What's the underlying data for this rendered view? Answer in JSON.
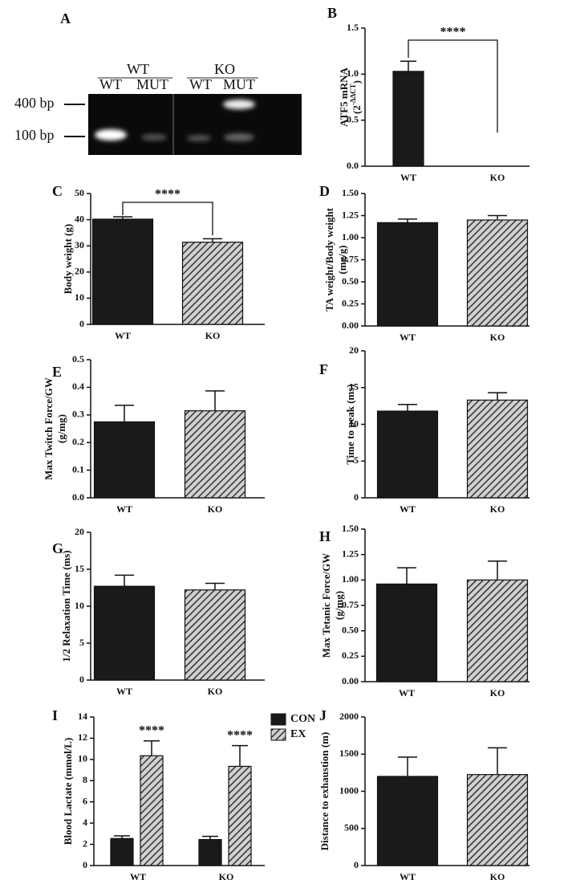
{
  "gel": {
    "panel": "A",
    "groups": [
      "WT",
      "KO"
    ],
    "lanes": [
      "WT",
      "MUT",
      "WT",
      "MUT"
    ],
    "markers": [
      "400 bp",
      "100 bp"
    ]
  },
  "chart_data": [
    {
      "type": "bar",
      "panel": "B",
      "ylabel": [
        "ATF5 mRNA",
        {
          "base": "(2",
          "sup": "-ΔΔCT",
          "end": ")"
        }
      ],
      "categories": [
        "WT",
        "KO"
      ],
      "values": [
        1.03,
        0
      ],
      "errors": [
        0.11,
        0
      ],
      "fills": [
        "solid",
        "hatched"
      ],
      "ylim": [
        0,
        1.5
      ],
      "yticks": [
        {
          "value": 0,
          "label": "0.0"
        },
        {
          "value": 0.5,
          "label": "0.5"
        },
        {
          "value": 1,
          "label": "1.0"
        },
        {
          "value": 1.5,
          "label": "1.5"
        }
      ],
      "significance": "****"
    },
    {
      "type": "bar",
      "panel": "C",
      "ylabel": "Body weight (g)",
      "categories": [
        "WT",
        "KO"
      ],
      "values": [
        40.2,
        31.4
      ],
      "errors": [
        0.9,
        1.3
      ],
      "fills": [
        "solid",
        "hatched"
      ],
      "ylim": [
        0,
        50
      ],
      "yticks": [
        0,
        10,
        20,
        30,
        40,
        50
      ],
      "significance": "****"
    },
    {
      "type": "bar",
      "panel": "D",
      "ylabel": [
        "TA weight/Body weight",
        "(mg/g)"
      ],
      "categories": [
        "WT",
        "KO"
      ],
      "values": [
        1.17,
        1.2
      ],
      "errors": [
        0.04,
        0.05
      ],
      "fills": [
        "solid",
        "hatched"
      ],
      "ylim": [
        0,
        1.5
      ],
      "yticks": [
        {
          "value": 0,
          "label": "0.00"
        },
        {
          "value": 0.25,
          "label": "0.25"
        },
        {
          "value": 0.5,
          "label": "0.50"
        },
        {
          "value": 0.75,
          "label": "0.75"
        },
        {
          "value": 1,
          "label": "1.00"
        },
        {
          "value": 1.25,
          "label": "1.25"
        },
        {
          "value": 1.5,
          "label": "1.50"
        }
      ]
    },
    {
      "type": "bar",
      "panel": "E",
      "ylabel": [
        "Max Twitch Force/GW",
        "(g/mg)"
      ],
      "categories": [
        "WT",
        "KO"
      ],
      "values": [
        0.275,
        0.315
      ],
      "errors": [
        0.06,
        0.072
      ],
      "fills": [
        "solid",
        "hatched"
      ],
      "ylim": [
        0,
        0.5
      ],
      "yticks": [
        {
          "value": 0,
          "label": "0.0"
        },
        {
          "value": 0.1,
          "label": "0.1"
        },
        {
          "value": 0.2,
          "label": "0.2"
        },
        {
          "value": 0.3,
          "label": "0.3"
        },
        {
          "value": 0.4,
          "label": "0.4"
        },
        {
          "value": 0.5,
          "label": "0.5"
        }
      ]
    },
    {
      "type": "bar",
      "panel": "F",
      "ylabel": "Time to peak (ms)",
      "categories": [
        "WT",
        "KO"
      ],
      "values": [
        11.8,
        13.3
      ],
      "errors": [
        0.9,
        1.0
      ],
      "fills": [
        "solid",
        "hatched"
      ],
      "ylim": [
        0,
        20
      ],
      "yticks": [
        0,
        5,
        10,
        15,
        20
      ]
    },
    {
      "type": "bar",
      "panel": "G",
      "ylabel": "1/2 Relaxation Time (ms)",
      "categories": [
        "WT",
        "KO"
      ],
      "values": [
        12.7,
        12.2
      ],
      "errors": [
        1.5,
        0.9
      ],
      "fills": [
        "solid",
        "hatched"
      ],
      "ylim": [
        0,
        20
      ],
      "yticks": [
        0,
        5,
        10,
        15,
        20
      ]
    },
    {
      "type": "bar",
      "panel": "H",
      "ylabel": [
        "Max Tetanic Force/GW",
        "(g/mg)"
      ],
      "categories": [
        "WT",
        "KO"
      ],
      "values": [
        0.96,
        1.0
      ],
      "errors": [
        0.16,
        0.185
      ],
      "fills": [
        "solid",
        "hatched"
      ],
      "ylim": [
        0,
        1.5
      ],
      "yticks": [
        {
          "value": 0,
          "label": "0.00"
        },
        {
          "value": 0.25,
          "label": "0.25"
        },
        {
          "value": 0.5,
          "label": "0.50"
        },
        {
          "value": 0.75,
          "label": "0.75"
        },
        {
          "value": 1,
          "label": "1.00"
        },
        {
          "value": 1.25,
          "label": "1.25"
        },
        {
          "value": 1.5,
          "label": "1.50"
        }
      ]
    },
    {
      "type": "grouped-bar",
      "panel": "I",
      "ylabel": "Blood Lactate (mmol/L)",
      "categories": [
        "WT",
        "KO"
      ],
      "series": [
        {
          "name": "CON",
          "fill": "solid",
          "values": [
            2.55,
            2.45
          ],
          "errors": [
            0.25,
            0.3
          ]
        },
        {
          "name": "EX",
          "fill": "hatched",
          "values": [
            10.35,
            9.35
          ],
          "errors": [
            1.4,
            1.95
          ],
          "labels": [
            "****",
            "****"
          ]
        }
      ],
      "ylim": [
        0,
        14
      ],
      "yticks": [
        0,
        2,
        4,
        6,
        8,
        10,
        12,
        14
      ]
    },
    {
      "type": "bar",
      "panel": "J",
      "ylabel": "Distance to exhaustion (m)",
      "categories": [
        "WT",
        "KO"
      ],
      "values": [
        1200,
        1225
      ],
      "errors": [
        260,
        360
      ],
      "fills": [
        "solid",
        "hatched"
      ],
      "ylim": [
        0,
        2000
      ],
      "yticks": [
        0,
        500,
        1000,
        1500,
        2000
      ]
    }
  ]
}
